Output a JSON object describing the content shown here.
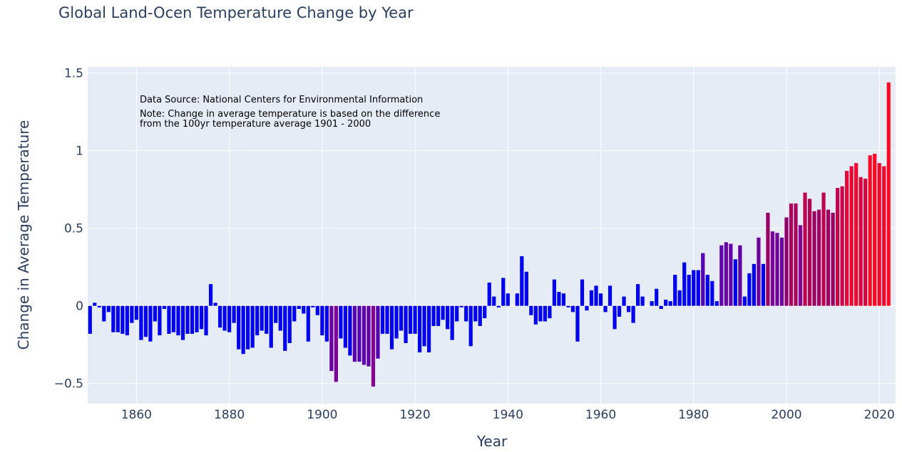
{
  "colors": {
    "plot_bg": "#e5ecf6",
    "grid": "#ffffff",
    "text": "#2a3f5f",
    "bar_low": "#0000ee",
    "bar_high": "#ff0024"
  },
  "chart_data": {
    "type": "bar",
    "title": "Global Land-Ocen Temperature Change by Year",
    "xlabel": "Year",
    "ylabel": "Change in Average Temperature",
    "xlim": [
      1849.5,
      2023.5
    ],
    "ylim": [
      -0.63,
      1.54
    ],
    "x_ticks": [
      1860,
      1880,
      1900,
      1920,
      1940,
      1960,
      1980,
      2000,
      2020
    ],
    "y_ticks": [
      -0.5,
      0,
      0.5,
      1,
      1.5
    ],
    "y_tick_labels": [
      "−0.5",
      "0",
      "0.5",
      "1",
      "1.5"
    ],
    "grid": true,
    "color_scale": "absolute value mapped from blue (low) through purple to red (high)",
    "annotations": [
      "Data Source: National Centers for Environmental Information",
      "Note: Change in average temperature is based on the difference",
      "from the 100yr temperature average 1901 - 2000"
    ],
    "x_start": 1850,
    "values": [
      -0.18,
      0.02,
      -0.01,
      -0.1,
      -0.04,
      -0.17,
      -0.17,
      -0.18,
      -0.19,
      -0.11,
      -0.09,
      -0.22,
      -0.2,
      -0.23,
      -0.1,
      -0.19,
      -0.02,
      -0.18,
      -0.17,
      -0.19,
      -0.22,
      -0.18,
      -0.18,
      -0.17,
      -0.15,
      -0.19,
      0.14,
      0.02,
      -0.14,
      -0.16,
      -0.17,
      -0.11,
      -0.28,
      -0.31,
      -0.28,
      -0.27,
      -0.19,
      -0.16,
      -0.18,
      -0.27,
      -0.11,
      -0.16,
      -0.29,
      -0.24,
      -0.1,
      -0.02,
      -0.05,
      -0.23,
      -0.01,
      -0.06,
      -0.19,
      -0.23,
      -0.42,
      -0.49,
      -0.21,
      -0.27,
      -0.32,
      -0.36,
      -0.36,
      -0.38,
      -0.39,
      -0.52,
      -0.34,
      -0.18,
      -0.18,
      -0.28,
      -0.21,
      -0.16,
      -0.24,
      -0.18,
      -0.18,
      -0.3,
      -0.26,
      -0.3,
      -0.13,
      -0.13,
      -0.09,
      -0.15,
      -0.22,
      -0.1,
      -0.01,
      -0.1,
      -0.26,
      -0.1,
      -0.13,
      -0.08,
      0.15,
      0.06,
      -0.01,
      0.18,
      0.08,
      0.0,
      0.08,
      0.32,
      0.22,
      -0.06,
      -0.12,
      -0.1,
      -0.1,
      -0.08,
      0.17,
      0.09,
      0.08,
      -0.01,
      -0.04,
      -0.23,
      0.17,
      -0.03,
      0.1,
      0.13,
      0.08,
      -0.04,
      0.13,
      -0.15,
      -0.07,
      0.06,
      -0.04,
      -0.11,
      0.14,
      0.06,
      0.0,
      0.03,
      0.11,
      -0.02,
      0.04,
      0.03,
      0.2,
      0.1,
      0.28,
      0.2,
      0.23,
      0.23,
      0.34,
      0.2,
      0.16,
      0.03,
      0.39,
      0.41,
      0.4,
      0.3,
      0.39,
      0.06,
      0.21,
      0.27,
      0.44,
      0.27,
      0.6,
      0.48,
      0.47,
      0.44,
      0.57,
      0.66,
      0.66,
      0.52,
      0.73,
      0.69,
      0.61,
      0.62,
      0.73,
      0.62,
      0.6,
      0.76,
      0.77,
      0.87,
      0.9,
      0.92,
      0.83,
      0.82,
      0.97,
      0.98,
      0.92,
      0.9,
      1.44
    ]
  }
}
